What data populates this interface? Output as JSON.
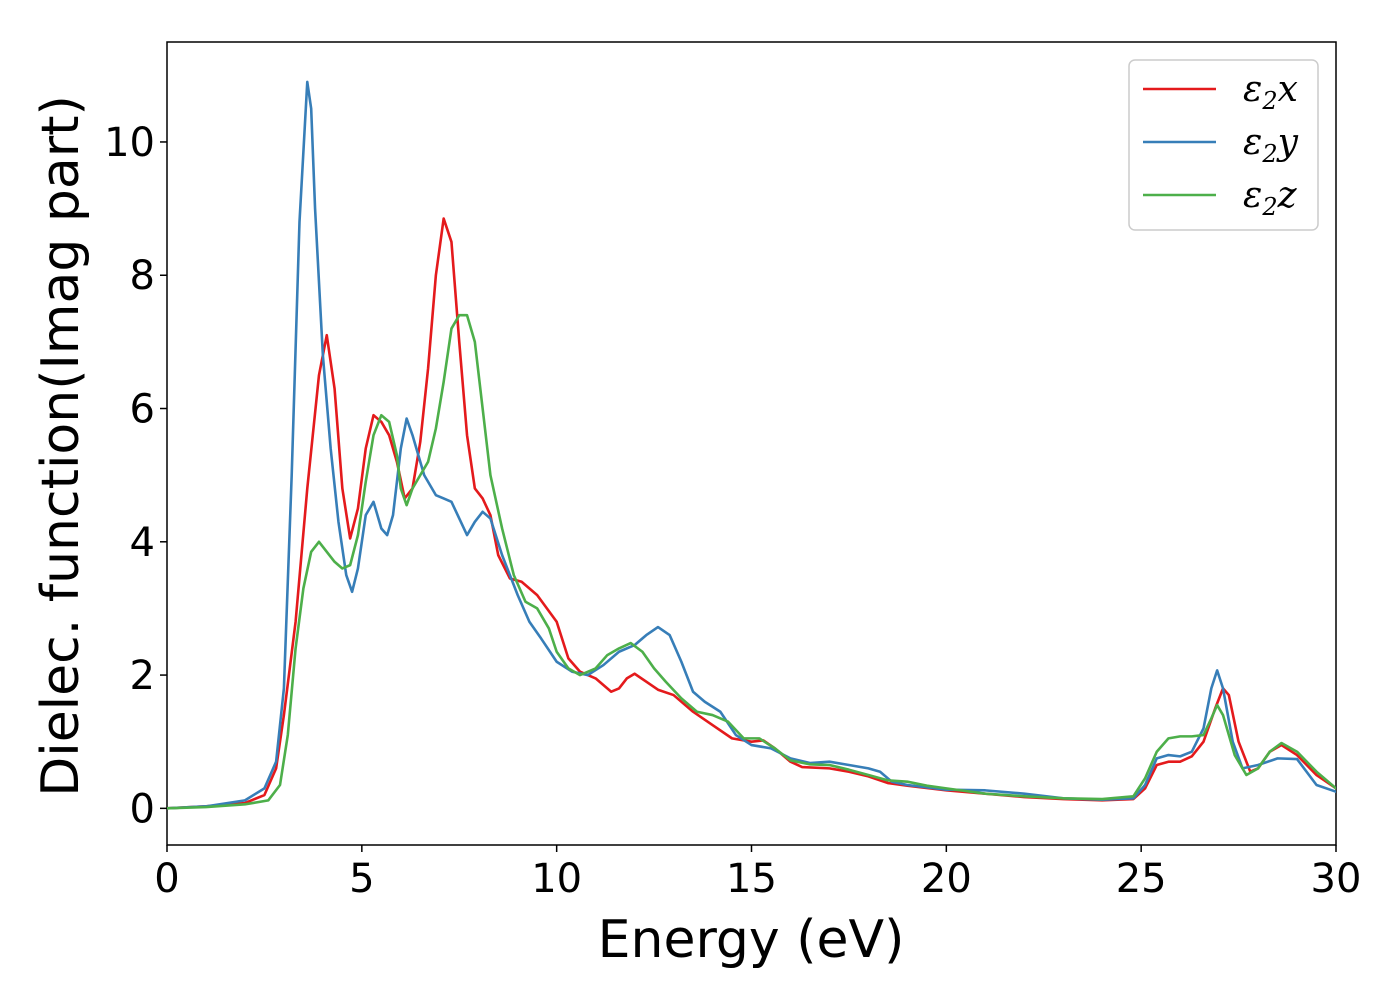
{
  "chart_data": {
    "type": "line",
    "xlabel": "Energy (eV)",
    "ylabel": "Dielec. function(Imag part)",
    "xlim": [
      0,
      30
    ],
    "ylim": [
      -0.55,
      11.5
    ],
    "xticks": [
      0,
      5,
      10,
      15,
      20,
      25,
      30
    ],
    "yticks": [
      0,
      2,
      4,
      6,
      8,
      10
    ],
    "grid": false,
    "legend_position": "top-right",
    "series": [
      {
        "name": "ε2x",
        "legend_symbol": "ε",
        "legend_sub": "2",
        "legend_axis": "x",
        "color": "#e41a1c",
        "points": [
          [
            0,
            0
          ],
          [
            1,
            0.03
          ],
          [
            2,
            0.08
          ],
          [
            2.5,
            0.2
          ],
          [
            2.8,
            0.6
          ],
          [
            3.0,
            1.4
          ],
          [
            3.3,
            2.8
          ],
          [
            3.6,
            4.8
          ],
          [
            3.9,
            6.5
          ],
          [
            4.1,
            7.1
          ],
          [
            4.3,
            6.3
          ],
          [
            4.5,
            4.8
          ],
          [
            4.7,
            4.05
          ],
          [
            4.9,
            4.5
          ],
          [
            5.1,
            5.4
          ],
          [
            5.3,
            5.9
          ],
          [
            5.5,
            5.8
          ],
          [
            5.7,
            5.6
          ],
          [
            5.9,
            5.2
          ],
          [
            6.1,
            4.65
          ],
          [
            6.3,
            4.8
          ],
          [
            6.5,
            5.5
          ],
          [
            6.7,
            6.6
          ],
          [
            6.9,
            8.0
          ],
          [
            7.1,
            8.85
          ],
          [
            7.3,
            8.5
          ],
          [
            7.5,
            7.0
          ],
          [
            7.7,
            5.6
          ],
          [
            7.9,
            4.8
          ],
          [
            8.1,
            4.65
          ],
          [
            8.3,
            4.4
          ],
          [
            8.5,
            3.8
          ],
          [
            8.8,
            3.45
          ],
          [
            9.1,
            3.4
          ],
          [
            9.5,
            3.2
          ],
          [
            10.0,
            2.8
          ],
          [
            10.3,
            2.25
          ],
          [
            10.6,
            2.05
          ],
          [
            11.0,
            1.95
          ],
          [
            11.4,
            1.75
          ],
          [
            11.6,
            1.8
          ],
          [
            11.8,
            1.95
          ],
          [
            12.0,
            2.02
          ],
          [
            12.3,
            1.9
          ],
          [
            12.6,
            1.78
          ],
          [
            13.0,
            1.7
          ],
          [
            13.5,
            1.45
          ],
          [
            14.0,
            1.25
          ],
          [
            14.5,
            1.05
          ],
          [
            15.0,
            1.0
          ],
          [
            15.3,
            1.02
          ],
          [
            15.6,
            0.9
          ],
          [
            16.0,
            0.7
          ],
          [
            16.3,
            0.62
          ],
          [
            17.0,
            0.6
          ],
          [
            17.5,
            0.55
          ],
          [
            18.0,
            0.48
          ],
          [
            18.5,
            0.38
          ],
          [
            19.0,
            0.34
          ],
          [
            20.0,
            0.27
          ],
          [
            21.0,
            0.22
          ],
          [
            22.0,
            0.17
          ],
          [
            23.0,
            0.14
          ],
          [
            24.0,
            0.12
          ],
          [
            24.8,
            0.14
          ],
          [
            25.1,
            0.3
          ],
          [
            25.4,
            0.65
          ],
          [
            25.7,
            0.7
          ],
          [
            26.0,
            0.7
          ],
          [
            26.3,
            0.78
          ],
          [
            26.6,
            1.0
          ],
          [
            26.9,
            1.5
          ],
          [
            27.1,
            1.8
          ],
          [
            27.25,
            1.7
          ],
          [
            27.5,
            1.0
          ],
          [
            27.8,
            0.55
          ],
          [
            28.0,
            0.6
          ],
          [
            28.3,
            0.85
          ],
          [
            28.6,
            0.95
          ],
          [
            29.0,
            0.8
          ],
          [
            29.5,
            0.5
          ],
          [
            30.0,
            0.3
          ]
        ]
      },
      {
        "name": "ε2y",
        "legend_symbol": "ε",
        "legend_sub": "2",
        "legend_axis": "y",
        "color": "#377eb8",
        "points": [
          [
            0,
            0
          ],
          [
            1,
            0.03
          ],
          [
            2,
            0.12
          ],
          [
            2.5,
            0.3
          ],
          [
            2.8,
            0.7
          ],
          [
            3.0,
            1.8
          ],
          [
            3.2,
            5.0
          ],
          [
            3.4,
            8.8
          ],
          [
            3.6,
            10.9
          ],
          [
            3.7,
            10.5
          ],
          [
            3.8,
            9.0
          ],
          [
            4.0,
            6.8
          ],
          [
            4.2,
            5.4
          ],
          [
            4.4,
            4.3
          ],
          [
            4.6,
            3.5
          ],
          [
            4.75,
            3.25
          ],
          [
            4.9,
            3.6
          ],
          [
            5.1,
            4.4
          ],
          [
            5.3,
            4.6
          ],
          [
            5.5,
            4.2
          ],
          [
            5.65,
            4.1
          ],
          [
            5.8,
            4.4
          ],
          [
            6.0,
            5.4
          ],
          [
            6.15,
            5.85
          ],
          [
            6.3,
            5.6
          ],
          [
            6.6,
            5.0
          ],
          [
            6.9,
            4.7
          ],
          [
            7.1,
            4.65
          ],
          [
            7.3,
            4.6
          ],
          [
            7.5,
            4.35
          ],
          [
            7.7,
            4.1
          ],
          [
            7.9,
            4.3
          ],
          [
            8.1,
            4.45
          ],
          [
            8.3,
            4.35
          ],
          [
            8.6,
            3.8
          ],
          [
            9.0,
            3.2
          ],
          [
            9.3,
            2.8
          ],
          [
            9.6,
            2.55
          ],
          [
            10.0,
            2.2
          ],
          [
            10.4,
            2.05
          ],
          [
            10.8,
            2.0
          ],
          [
            11.2,
            2.15
          ],
          [
            11.6,
            2.35
          ],
          [
            12.0,
            2.45
          ],
          [
            12.3,
            2.6
          ],
          [
            12.6,
            2.72
          ],
          [
            12.9,
            2.6
          ],
          [
            13.2,
            2.2
          ],
          [
            13.5,
            1.75
          ],
          [
            13.8,
            1.6
          ],
          [
            14.2,
            1.45
          ],
          [
            14.6,
            1.1
          ],
          [
            15.0,
            0.95
          ],
          [
            15.5,
            0.9
          ],
          [
            16.0,
            0.75
          ],
          [
            16.5,
            0.68
          ],
          [
            17.0,
            0.7
          ],
          [
            17.5,
            0.65
          ],
          [
            18.0,
            0.6
          ],
          [
            18.3,
            0.55
          ],
          [
            18.6,
            0.4
          ],
          [
            19.0,
            0.35
          ],
          [
            20.0,
            0.28
          ],
          [
            21.0,
            0.27
          ],
          [
            22.0,
            0.22
          ],
          [
            23.0,
            0.15
          ],
          [
            24.0,
            0.13
          ],
          [
            24.8,
            0.15
          ],
          [
            25.1,
            0.35
          ],
          [
            25.4,
            0.75
          ],
          [
            25.7,
            0.8
          ],
          [
            26.0,
            0.78
          ],
          [
            26.3,
            0.85
          ],
          [
            26.6,
            1.2
          ],
          [
            26.8,
            1.8
          ],
          [
            26.95,
            2.07
          ],
          [
            27.1,
            1.8
          ],
          [
            27.35,
            1.0
          ],
          [
            27.6,
            0.6
          ],
          [
            28.0,
            0.65
          ],
          [
            28.5,
            0.75
          ],
          [
            29.0,
            0.74
          ],
          [
            29.5,
            0.35
          ],
          [
            30.0,
            0.25
          ]
        ]
      },
      {
        "name": "ε2z",
        "legend_symbol": "ε",
        "legend_sub": "2",
        "legend_axis": "z",
        "color": "#4daf4a",
        "points": [
          [
            0,
            0
          ],
          [
            1,
            0.02
          ],
          [
            2,
            0.06
          ],
          [
            2.6,
            0.12
          ],
          [
            2.9,
            0.35
          ],
          [
            3.1,
            1.1
          ],
          [
            3.3,
            2.4
          ],
          [
            3.5,
            3.3
          ],
          [
            3.7,
            3.85
          ],
          [
            3.9,
            4.0
          ],
          [
            4.1,
            3.85
          ],
          [
            4.3,
            3.7
          ],
          [
            4.5,
            3.6
          ],
          [
            4.7,
            3.65
          ],
          [
            4.9,
            4.1
          ],
          [
            5.1,
            4.9
          ],
          [
            5.3,
            5.6
          ],
          [
            5.5,
            5.9
          ],
          [
            5.7,
            5.8
          ],
          [
            5.9,
            5.3
          ],
          [
            6.0,
            4.8
          ],
          [
            6.15,
            4.55
          ],
          [
            6.3,
            4.8
          ],
          [
            6.5,
            5.0
          ],
          [
            6.7,
            5.2
          ],
          [
            6.9,
            5.7
          ],
          [
            7.1,
            6.4
          ],
          [
            7.3,
            7.2
          ],
          [
            7.5,
            7.4
          ],
          [
            7.7,
            7.4
          ],
          [
            7.9,
            7.0
          ],
          [
            8.1,
            6.0
          ],
          [
            8.3,
            5.0
          ],
          [
            8.6,
            4.2
          ],
          [
            8.9,
            3.5
          ],
          [
            9.2,
            3.1
          ],
          [
            9.5,
            3.0
          ],
          [
            9.8,
            2.7
          ],
          [
            10.0,
            2.35
          ],
          [
            10.3,
            2.1
          ],
          [
            10.6,
            2.0
          ],
          [
            11.0,
            2.1
          ],
          [
            11.3,
            2.3
          ],
          [
            11.6,
            2.4
          ],
          [
            11.9,
            2.48
          ],
          [
            12.2,
            2.35
          ],
          [
            12.5,
            2.1
          ],
          [
            12.8,
            1.9
          ],
          [
            13.2,
            1.65
          ],
          [
            13.6,
            1.45
          ],
          [
            14.0,
            1.4
          ],
          [
            14.4,
            1.3
          ],
          [
            14.8,
            1.05
          ],
          [
            15.2,
            1.05
          ],
          [
            15.6,
            0.9
          ],
          [
            16.0,
            0.72
          ],
          [
            16.5,
            0.66
          ],
          [
            17.0,
            0.65
          ],
          [
            17.5,
            0.58
          ],
          [
            18.0,
            0.5
          ],
          [
            18.5,
            0.42
          ],
          [
            19.0,
            0.4
          ],
          [
            19.5,
            0.34
          ],
          [
            20.0,
            0.3
          ],
          [
            21.0,
            0.22
          ],
          [
            22.0,
            0.18
          ],
          [
            23.0,
            0.15
          ],
          [
            24.0,
            0.14
          ],
          [
            24.8,
            0.18
          ],
          [
            25.1,
            0.45
          ],
          [
            25.4,
            0.85
          ],
          [
            25.7,
            1.05
          ],
          [
            26.0,
            1.08
          ],
          [
            26.3,
            1.08
          ],
          [
            26.6,
            1.1
          ],
          [
            26.8,
            1.35
          ],
          [
            26.95,
            1.55
          ],
          [
            27.1,
            1.4
          ],
          [
            27.4,
            0.8
          ],
          [
            27.7,
            0.5
          ],
          [
            28.0,
            0.6
          ],
          [
            28.3,
            0.85
          ],
          [
            28.6,
            0.98
          ],
          [
            29.0,
            0.85
          ],
          [
            29.5,
            0.55
          ],
          [
            30.0,
            0.3
          ]
        ]
      }
    ]
  }
}
